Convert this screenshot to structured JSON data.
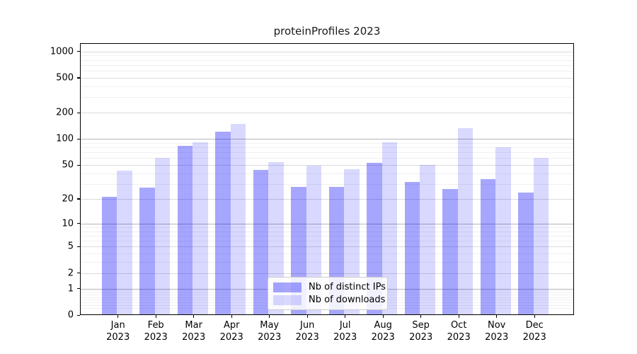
{
  "title": "proteinProfiles 2023",
  "legend": {
    "items": [
      {
        "label": "Nb of distinct IPs",
        "color": "rgba(0,0,255,0.35)"
      },
      {
        "label": "Nb of downloads",
        "color": "rgba(0,0,255,0.15)"
      }
    ]
  },
  "chart_data": {
    "type": "bar",
    "title": "proteinProfiles 2023",
    "categories": [
      "Jan 2023",
      "Feb 2023",
      "Mar 2023",
      "Apr 2023",
      "May 2023",
      "Jun 2023",
      "Jul 2023",
      "Aug 2023",
      "Sep 2023",
      "Oct 2023",
      "Nov 2023",
      "Dec 2023"
    ],
    "series": [
      {
        "name": "Nb of distinct IPs",
        "color": "rgba(0,0,255,0.35)",
        "color_hex_on_white": "#a6a6ff",
        "values": [
          21,
          27,
          84,
          122,
          44,
          28,
          28,
          53,
          32,
          26,
          34,
          24
        ]
      },
      {
        "name": "Nb of downloads",
        "color": "rgba(0,0,255,0.15)",
        "color_hex_on_white": "#d9d9ff",
        "values": [
          43,
          60,
          92,
          148,
          54,
          49,
          45,
          92,
          50,
          133,
          80,
          61
        ]
      }
    ],
    "xlabel": "",
    "ylabel": "",
    "y_scale": "log1p",
    "y_ticks": [
      0,
      1,
      2,
      5,
      10,
      20,
      50,
      100,
      200,
      500,
      1000
    ],
    "ylim": [
      0,
      1240
    ],
    "grid": true,
    "legend_position": "lower center-right inside plot"
  }
}
